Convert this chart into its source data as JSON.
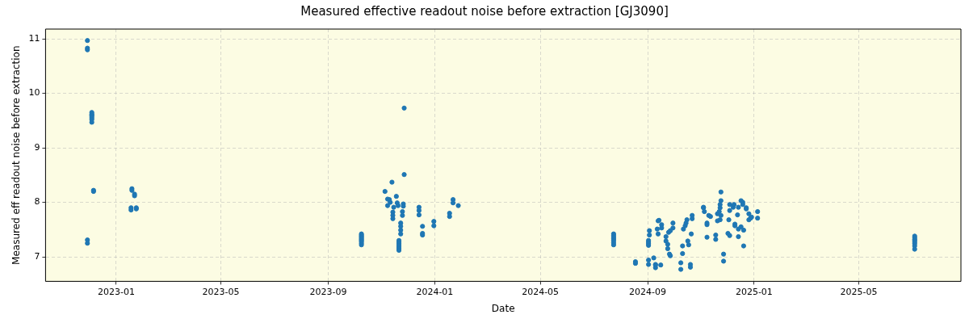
{
  "chart_data": {
    "type": "scatter",
    "title": "Measured effective readout noise before extraction [GJ3090]",
    "xlabel": "Date",
    "ylabel": "Measured eff readout noise before extraction",
    "xlim": [
      "2022-10-12",
      "2025-08-26"
    ],
    "xticks": [
      "2023-01",
      "2023-05",
      "2023-09",
      "2024-01",
      "2024-05",
      "2024-09",
      "2025-01",
      "2025-05"
    ],
    "ylim": [
      6.55,
      11.18
    ],
    "yticks": [
      7,
      8,
      9,
      10,
      11
    ],
    "grid": true,
    "marker": "circle",
    "legend": false,
    "series": [
      {
        "color": "#1f77b4",
        "x": [
          "2022-11-29",
          "2022-11-29",
          "2022-11-29",
          "2022-11-29",
          "2022-11-29",
          "2022-12-04",
          "2022-12-04",
          "2022-12-04",
          "2022-12-04",
          "2022-12-04",
          "2022-12-04",
          "2022-12-04",
          "2022-12-06",
          "2022-12-06",
          "2023-01-19",
          "2023-01-19",
          "2023-01-22",
          "2023-01-22",
          "2023-01-18",
          "2023-01-18",
          "2023-01-24",
          "2023-01-24",
          "2023-10-09",
          "2023-10-09",
          "2023-10-09",
          "2023-10-09",
          "2023-10-09",
          "2023-10-09",
          "2023-10-09",
          "2023-10-09",
          "2023-10-09",
          "2023-10-09",
          "2023-11-27",
          "2023-11-27",
          "2023-11-13",
          "2023-11-05",
          "2023-11-08",
          "2023-11-10",
          "2023-11-11",
          "2023-11-08",
          "2023-11-18",
          "2023-11-19",
          "2023-11-20",
          "2023-11-14",
          "2023-11-14",
          "2023-11-14",
          "2023-11-15",
          "2023-11-23",
          "2023-11-23",
          "2023-11-23",
          "2023-11-23",
          "2023-11-21",
          "2023-11-21",
          "2023-11-21",
          "2023-11-21",
          "2023-11-21",
          "2023-11-21",
          "2023-11-21",
          "2023-11-25",
          "2023-11-25",
          "2023-11-26",
          "2023-11-26",
          "2023-12-14",
          "2023-12-14",
          "2023-12-14",
          "2023-12-18",
          "2023-12-18",
          "2023-12-18",
          "2023-12-31",
          "2023-12-31",
          "2024-01-22",
          "2024-01-22",
          "2024-01-28",
          "2024-01-18",
          "2024-01-18",
          "2024-07-24",
          "2024-07-24",
          "2024-07-24",
          "2024-07-24",
          "2024-07-24",
          "2024-07-24",
          "2024-07-24",
          "2024-08-18",
          "2024-08-18",
          "2024-09-02",
          "2024-09-02",
          "2024-09-02",
          "2024-09-02",
          "2024-09-03",
          "2024-09-03",
          "2024-09-02",
          "2024-09-02",
          "2024-09-08",
          "2024-09-10",
          "2024-09-10",
          "2024-09-10",
          "2024-09-16",
          "2024-09-13",
          "2024-09-14",
          "2024-09-12",
          "2024-09-13",
          "2024-09-17",
          "2024-09-17",
          "2024-09-22",
          "2024-09-25",
          "2024-09-27",
          "2024-09-22",
          "2024-09-24",
          "2024-09-24",
          "2024-09-26",
          "2024-09-27",
          "2024-09-30",
          "2024-09-30",
          "2024-10-09",
          "2024-10-09",
          "2024-10-11",
          "2024-10-11",
          "2024-10-12",
          "2024-10-14",
          "2024-10-15",
          "2024-10-16",
          "2024-10-17",
          "2024-10-18",
          "2024-10-20",
          "2024-10-20",
          "2024-10-21",
          "2024-10-22",
          "2024-10-22",
          "2024-11-04",
          "2024-11-04",
          "2024-11-05",
          "2024-11-08",
          "2024-11-08",
          "2024-11-10",
          "2024-11-12",
          "2024-11-08",
          "2024-11-18",
          "2024-11-18",
          "2024-11-20",
          "2024-11-22",
          "2024-11-23",
          "2024-11-24",
          "2024-11-24",
          "2024-11-20",
          "2024-11-23",
          "2024-11-24",
          "2024-11-23",
          "2024-11-27",
          "2024-11-27",
          "2024-12-02",
          "2024-12-04",
          "2024-12-03",
          "2024-12-04",
          "2024-12-04",
          "2024-12-08",
          "2024-12-09",
          "2024-12-14",
          "2024-12-10",
          "2024-12-10",
          "2024-12-14",
          "2024-12-17",
          "2024-12-20",
          "2024-12-13",
          "2024-12-14",
          "2024-12-20",
          "2024-12-17",
          "2024-12-19",
          "2024-12-19",
          "2024-12-23",
          "2024-12-23",
          "2024-12-26",
          "2024-12-26",
          "2024-12-28",
          "2024-12-29",
          "2025-01-05",
          "2025-01-05",
          "2025-07-04",
          "2025-07-04",
          "2025-07-04",
          "2025-07-04",
          "2025-07-04",
          "2025-07-04",
          "2025-07-04",
          "2025-07-04"
        ],
        "values": [
          10.97,
          10.83,
          10.8,
          7.31,
          7.25,
          9.65,
          9.62,
          9.6,
          9.58,
          9.55,
          9.52,
          9.47,
          8.22,
          8.2,
          8.25,
          8.22,
          8.15,
          8.12,
          7.9,
          7.86,
          7.9,
          7.88,
          7.42,
          7.4,
          7.38,
          7.36,
          7.34,
          7.32,
          7.3,
          7.28,
          7.25,
          7.22,
          9.73,
          8.51,
          8.37,
          8.2,
          8.06,
          8.05,
          8.0,
          7.94,
          8.11,
          7.99,
          7.94,
          7.82,
          7.76,
          7.7,
          7.91,
          7.62,
          7.56,
          7.49,
          7.42,
          7.3,
          7.27,
          7.24,
          7.21,
          7.18,
          7.15,
          7.12,
          7.83,
          7.76,
          7.97,
          7.93,
          7.91,
          7.85,
          7.77,
          7.56,
          7.4,
          7.43,
          7.65,
          7.57,
          8.05,
          7.99,
          7.94,
          7.8,
          7.74,
          7.42,
          7.39,
          7.36,
          7.33,
          7.3,
          7.26,
          7.22,
          6.91,
          6.88,
          7.3,
          7.27,
          7.24,
          7.21,
          7.48,
          7.4,
          6.94,
          6.86,
          6.98,
          6.86,
          6.8,
          6.85,
          6.85,
          7.66,
          7.67,
          7.51,
          7.42,
          7.59,
          7.53,
          7.37,
          7.45,
          7.48,
          7.29,
          7.23,
          7.15,
          7.05,
          7.02,
          7.62,
          7.53,
          6.89,
          6.77,
          7.2,
          7.06,
          7.51,
          7.57,
          7.62,
          7.68,
          7.29,
          7.22,
          6.86,
          6.81,
          7.42,
          7.76,
          7.7,
          7.91,
          7.9,
          7.83,
          7.59,
          7.62,
          7.76,
          7.74,
          7.36,
          7.4,
          7.32,
          7.79,
          7.83,
          7.9,
          8.03,
          8.19,
          7.66,
          7.68,
          7.76,
          7.96,
          7.05,
          6.92,
          7.43,
          7.39,
          7.68,
          7.85,
          7.96,
          7.91,
          7.96,
          7.91,
          7.6,
          7.57,
          7.51,
          7.55,
          7.49,
          7.77,
          7.37,
          7.2,
          8.03,
          8.0,
          7.96,
          7.9,
          7.88,
          7.79,
          7.68,
          7.71,
          7.73,
          7.83,
          7.71,
          7.38,
          7.35,
          7.32,
          7.3,
          7.27,
          7.24,
          7.2,
          7.14
        ]
      }
    ]
  }
}
